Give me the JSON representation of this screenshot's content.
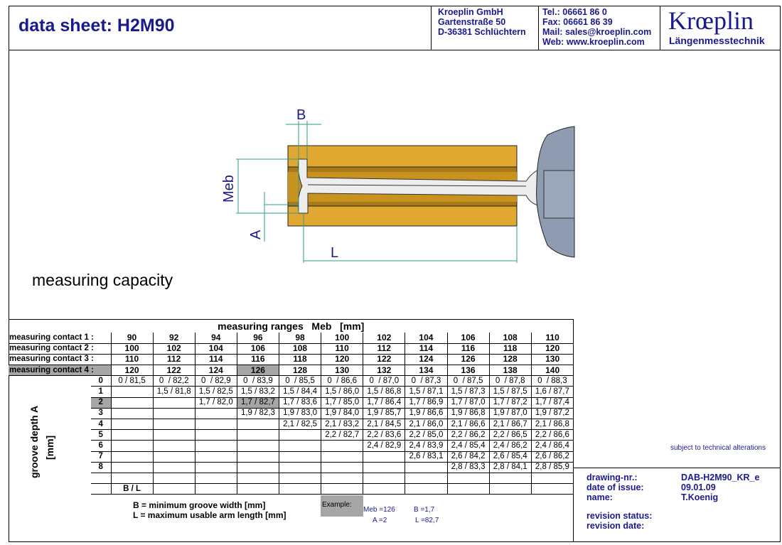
{
  "header": {
    "title": "data sheet:  H2M90",
    "company": [
      "Kroeplin GmbH",
      "Gartenstraße 50",
      "D-36381 Schlüchtern"
    ],
    "contact": [
      "Tel.:  06661 86 0",
      "Fax:  06661 86 39",
      "Mail: sales@kroeplin.com",
      "Web: www.kroeplin.com"
    ],
    "logo": "Krœplin",
    "logo_sub": "Längenmesstechnik"
  },
  "drawing_labels": {
    "b": "B",
    "meb": "Meb",
    "a": "A",
    "l": "L"
  },
  "section_title": "measuring capacity",
  "table": {
    "title": "measuring ranges   Meb   [mm]",
    "contacts": [
      {
        "label": "measuring contact 1 :",
        "values": [
          "90",
          "92",
          "94",
          "96",
          "98",
          "100",
          "102",
          "104",
          "106",
          "108",
          "110"
        ]
      },
      {
        "label": "measuring contact 2 :",
        "values": [
          "100",
          "102",
          "104",
          "106",
          "108",
          "110",
          "112",
          "114",
          "116",
          "118",
          "120"
        ]
      },
      {
        "label": "measuring contact 3 :",
        "values": [
          "110",
          "112",
          "114",
          "116",
          "118",
          "120",
          "122",
          "124",
          "126",
          "128",
          "130"
        ]
      },
      {
        "label": "measuring contact 4 :",
        "values": [
          "120",
          "122",
          "124",
          "126",
          "128",
          "130",
          "132",
          "134",
          "136",
          "138",
          "140"
        ]
      }
    ],
    "row_axis_label": "groove depth   A",
    "row_axis_unit": "[mm]",
    "rows": [
      {
        "depth": "0",
        "cells": [
          "0 / 81,5",
          "0  / 82,2",
          "0  / 82,9",
          "0  / 83,9",
          "0  / 85,5",
          "0  / 86,6",
          "0  / 87,0",
          "0  / 87,3",
          "0  / 87,5",
          "0  / 87,8",
          "0  / 88,3"
        ]
      },
      {
        "depth": "1",
        "cells": [
          "",
          "1,5 / 81,8",
          "1,5 / 82,5",
          "1,5 / 83,2",
          "1,5 / 84,4",
          "1,5 / 86,0",
          "1,5 / 86,8",
          "1,5 / 87,1",
          "1,5 / 87,3",
          "1,5 / 87,5",
          "1,6 / 87,7"
        ]
      },
      {
        "depth": "2",
        "cells": [
          "",
          "",
          "1,7 / 82,0",
          "1,7 / 82,7",
          "1,7 / 83,6",
          "1,7 / 85,0",
          "1,7 / 86,4",
          "1,7 / 86,9",
          "1,7 / 87,0",
          "1,7 / 87,2",
          "1,7 / 87,4"
        ]
      },
      {
        "depth": "3",
        "cells": [
          "",
          "",
          "",
          "1,9 / 82,3",
          "1,9 / 83,0",
          "1,9 / 84,0",
          "1,9 / 85,7",
          "1,9 / 86,6",
          "1,9 / 86,8",
          "1,9 / 87,0",
          "1,9 / 87,2"
        ]
      },
      {
        "depth": "4",
        "cells": [
          "",
          "",
          "",
          "",
          "2,1 / 82,5",
          "2,1 / 83,2",
          "2,1 / 84,5",
          "2,1 / 86,0",
          "2,1 / 86,6",
          "2,1 / 86,7",
          "2,1 / 86,8"
        ]
      },
      {
        "depth": "5",
        "cells": [
          "",
          "",
          "",
          "",
          "",
          "2,2 / 82,7",
          "2,2 / 83,6",
          "2,2 / 85,0",
          "2,2 / 86,2",
          "2,2 / 86,5",
          "2,2 / 86,6"
        ]
      },
      {
        "depth": "6",
        "cells": [
          "",
          "",
          "",
          "",
          "",
          "",
          "2,4 / 82,9",
          "2,4 / 83,9",
          "2,4 / 85,4",
          "2,4 / 86,2",
          "2,4 / 86,4"
        ]
      },
      {
        "depth": "7",
        "cells": [
          "",
          "",
          "",
          "",
          "",
          "",
          "",
          "2,6 / 83,1",
          "2,6 / 84,2",
          "2,6 / 85,4",
          "2,6 / 86,2"
        ]
      },
      {
        "depth": "8",
        "cells": [
          "",
          "",
          "",
          "",
          "",
          "",
          "",
          "",
          "2,8 / 83,3",
          "2,8 / 84,1",
          "2,8 / 85,9"
        ]
      }
    ],
    "bl_label": "B / L",
    "highlight": {
      "contact": 4,
      "column": "96",
      "depth": "2"
    }
  },
  "legend": [
    "B = minimum groove width [mm]",
    "L = maximum usable arm length [mm]"
  ],
  "example": {
    "label": "Example:",
    "meb": "Meb  =126",
    "b": "B  =1,7",
    "a": "A  =2",
    "l": "L  =82,7"
  },
  "notice": "subject to technical alterations",
  "info": [
    {
      "label": "drawing-nr.:",
      "value": "DAB-H2M90_KR_e"
    },
    {
      "label": "date of issue:",
      "value": "09.01.09"
    },
    {
      "label": "name:",
      "value": "T.Koenig"
    },
    {
      "label": "revision status:",
      "value": ""
    },
    {
      "label": "revision date:",
      "value": ""
    }
  ],
  "colors": {
    "brand": "#1a1a8c",
    "dimension": "#2e9e8e",
    "brass": "#e0a830",
    "highlight": "#a6a6a6"
  }
}
